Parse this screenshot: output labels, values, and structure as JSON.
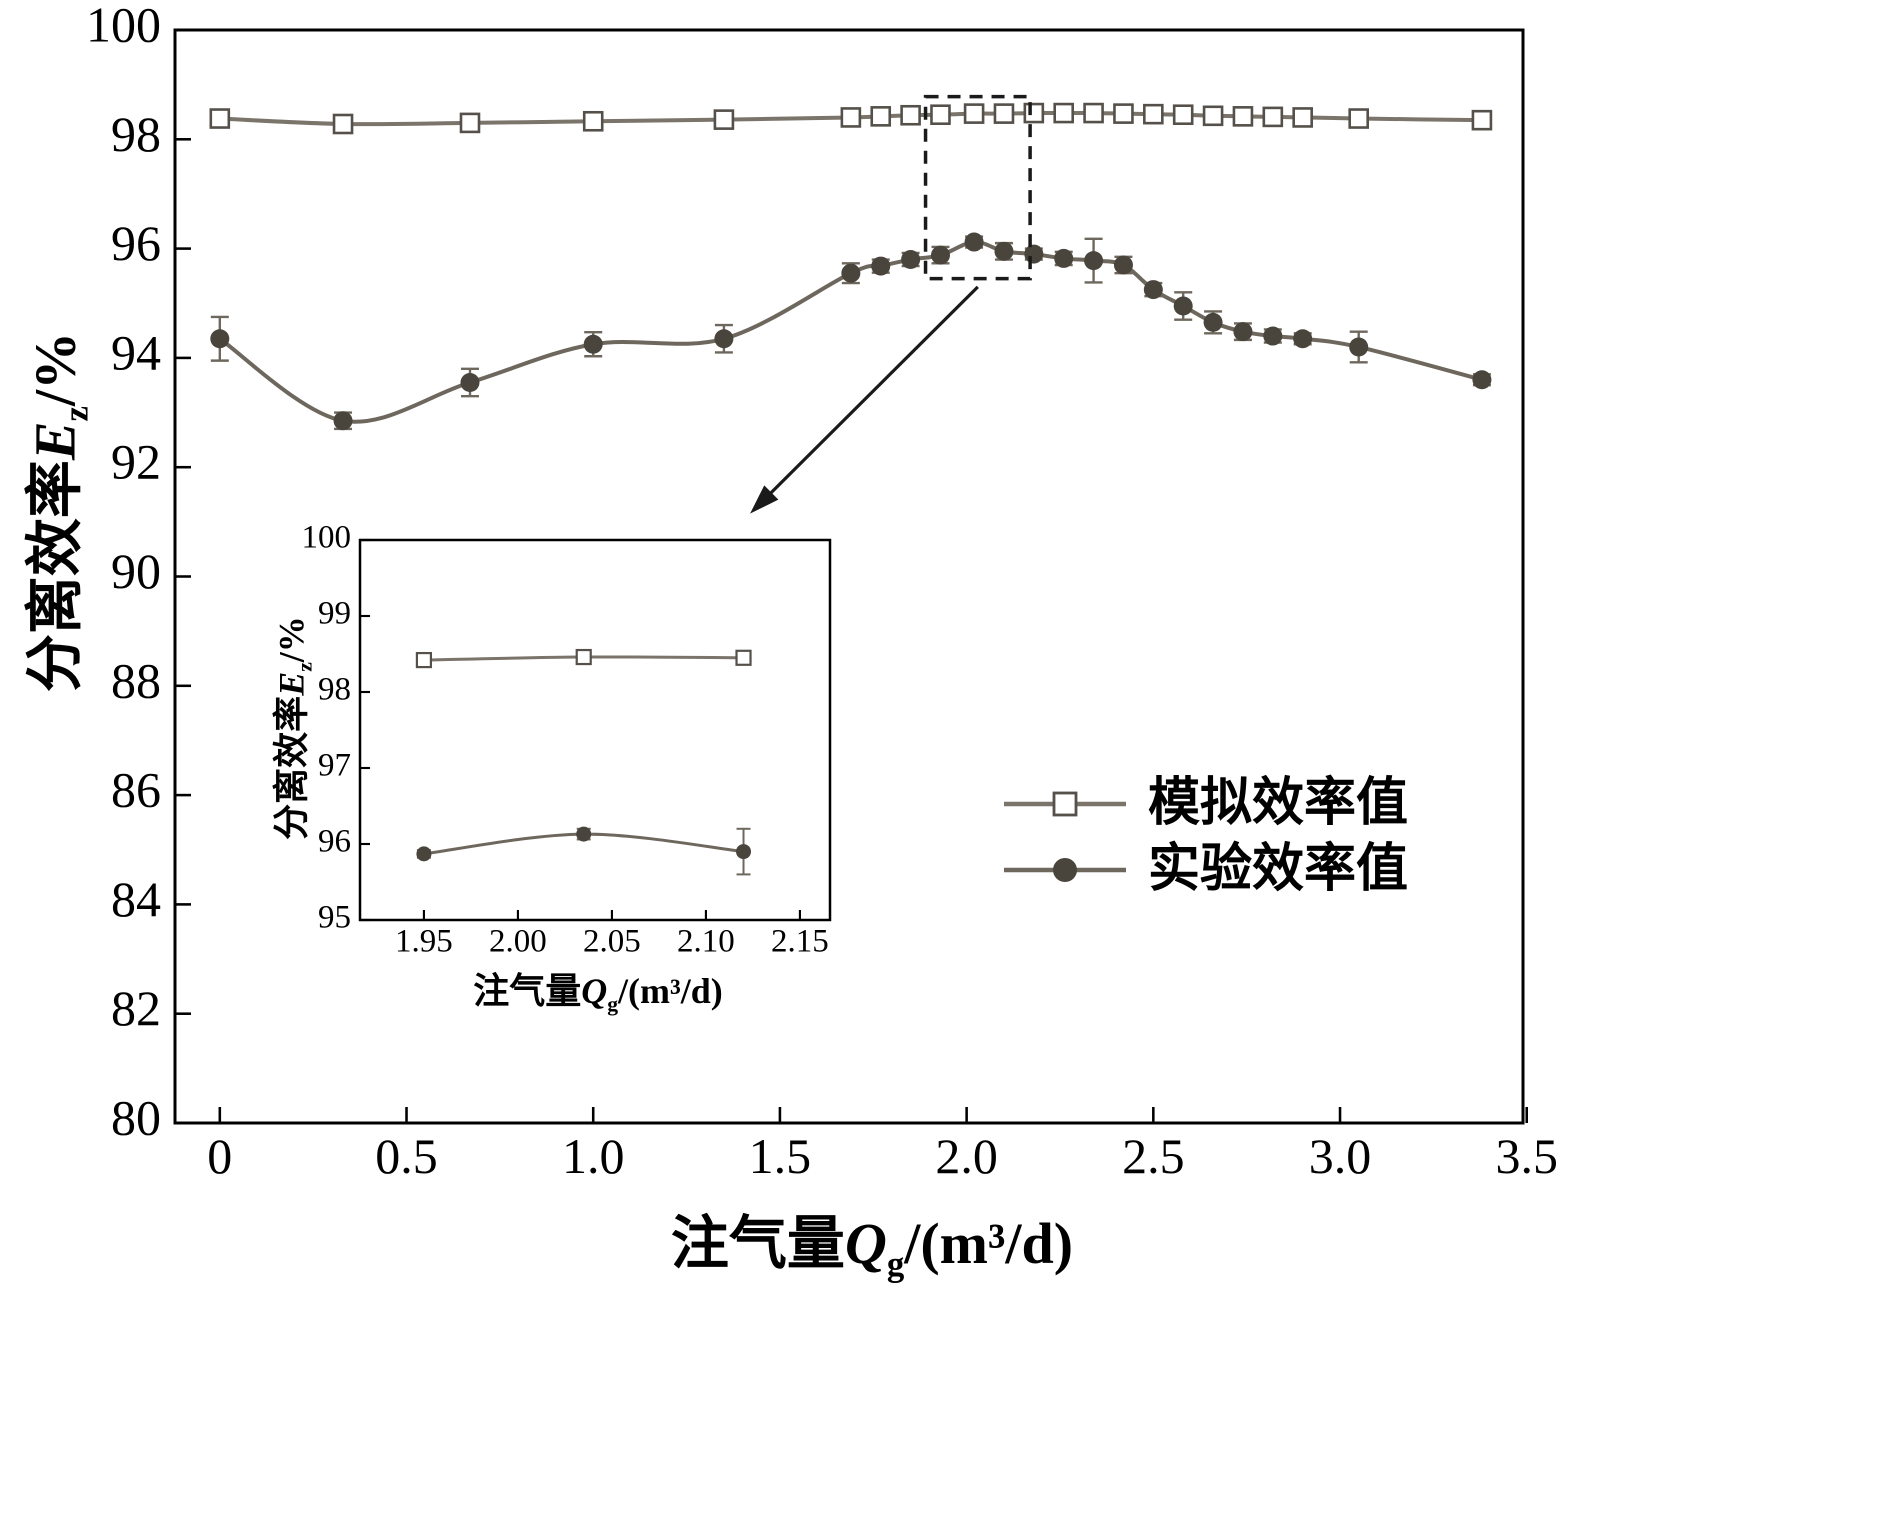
{
  "labels": {
    "xlabel": {
      "pre": "注气量",
      "var": "Q",
      "sub": "g",
      "post": "/(m³/d)"
    },
    "ylabel": {
      "pre": "分离效率",
      "var": "E",
      "sub": "z",
      "post": "/%"
    }
  },
  "colors": {
    "axis": "#000000",
    "sim_line": "#7b746b",
    "sim_edge": "#55504a",
    "sim_fill": "#ffffff",
    "exp_line": "#6e675d",
    "exp_fill": "#49443c",
    "annotation": "#1a1a1a"
  },
  "chart_data": {
    "type": "line",
    "title": "",
    "xlabel": "注气量Qg/(m³/d)",
    "ylabel": "分离效率Ez/%",
    "grid": false,
    "legend_position": "right-middle",
    "xlim": [
      -0.12,
      3.49
    ],
    "ylim": [
      80,
      100
    ],
    "xtick_vals": [
      0,
      0.5,
      1.0,
      1.5,
      2.0,
      2.5,
      3.0,
      3.5
    ],
    "xtick_labels": [
      "0",
      "0.5",
      "1.0",
      "1.5",
      "2.0",
      "2.5",
      "3.0",
      "3.5"
    ],
    "ytick_vals": [
      80,
      82,
      84,
      86,
      88,
      90,
      92,
      94,
      96,
      98,
      100
    ],
    "ytick_labels": [
      "80",
      "82",
      "84",
      "86",
      "88",
      "90",
      "92",
      "94",
      "96",
      "98",
      "100"
    ],
    "series": [
      {
        "name": "模拟效率值",
        "marker": "square-open",
        "x": [
          0.0,
          0.33,
          0.67,
          1.0,
          1.35,
          1.69,
          1.77,
          1.85,
          1.93,
          2.02,
          2.1,
          2.18,
          2.26,
          2.34,
          2.42,
          2.5,
          2.58,
          2.66,
          2.74,
          2.82,
          2.9,
          3.05,
          3.38
        ],
        "y": [
          98.38,
          98.28,
          98.3,
          98.33,
          98.36,
          98.4,
          98.42,
          98.44,
          98.45,
          98.47,
          98.47,
          98.48,
          98.48,
          98.48,
          98.47,
          98.46,
          98.45,
          98.43,
          98.42,
          98.41,
          98.4,
          98.38,
          98.35
        ],
        "err": [
          0.07,
          0.09,
          0.07,
          0.06,
          0.06,
          0.05,
          0.05,
          0.05,
          0.05,
          0.05,
          0.05,
          0.05,
          0.05,
          0.05,
          0.08,
          0.05,
          0.05,
          0.05,
          0.05,
          0.05,
          0.05,
          0.06,
          0.06
        ]
      },
      {
        "name": "实验效率值",
        "marker": "circle-filled",
        "x": [
          0.0,
          0.33,
          0.67,
          1.0,
          1.35,
          1.69,
          1.77,
          1.85,
          1.93,
          2.02,
          2.1,
          2.18,
          2.26,
          2.34,
          2.42,
          2.5,
          2.58,
          2.66,
          2.74,
          2.82,
          2.9,
          3.05,
          3.38
        ],
        "y": [
          94.35,
          92.85,
          93.55,
          94.25,
          94.35,
          95.55,
          95.68,
          95.8,
          95.88,
          96.12,
          95.95,
          95.9,
          95.82,
          95.78,
          95.7,
          95.25,
          94.95,
          94.65,
          94.48,
          94.4,
          94.35,
          94.2,
          93.6
        ],
        "err": [
          0.4,
          0.15,
          0.25,
          0.22,
          0.25,
          0.18,
          0.12,
          0.12,
          0.15,
          0.1,
          0.15,
          0.1,
          0.12,
          0.4,
          0.15,
          0.12,
          0.25,
          0.2,
          0.15,
          0.12,
          0.1,
          0.28,
          0.1
        ]
      }
    ],
    "annotations": {
      "zoom_rect": {
        "x0": 1.89,
        "x1": 2.17,
        "y0": 95.45,
        "y1": 98.78
      },
      "arrow": {
        "x0": 2.03,
        "y0": 95.3,
        "x1": 1.42,
        "y1": 91.15
      }
    },
    "inset": {
      "xlim": [
        1.916,
        2.166
      ],
      "ylim": [
        95,
        100
      ],
      "xtick_vals": [
        1.95,
        2.0,
        2.05,
        2.1,
        2.15
      ],
      "xtick_labels": [
        "1.95",
        "2.00",
        "2.05",
        "2.10",
        "2.15"
      ],
      "ytick_vals": [
        95,
        96,
        97,
        98,
        99,
        100
      ],
      "ytick_labels": [
        "95",
        "96",
        "97",
        "98",
        "99",
        "100"
      ],
      "series": [
        {
          "name": "模拟效率值",
          "marker": "square-open",
          "x": [
            1.95,
            2.035,
            2.12
          ],
          "y": [
            98.42,
            98.46,
            98.45
          ],
          "err": [
            0.04,
            0.04,
            0.04
          ]
        },
        {
          "name": "实验效率值",
          "marker": "circle-filled",
          "x": [
            1.95,
            2.035,
            2.12
          ],
          "y": [
            95.87,
            96.13,
            95.9
          ],
          "err": [
            0.05,
            0.07,
            0.3
          ]
        }
      ]
    }
  }
}
